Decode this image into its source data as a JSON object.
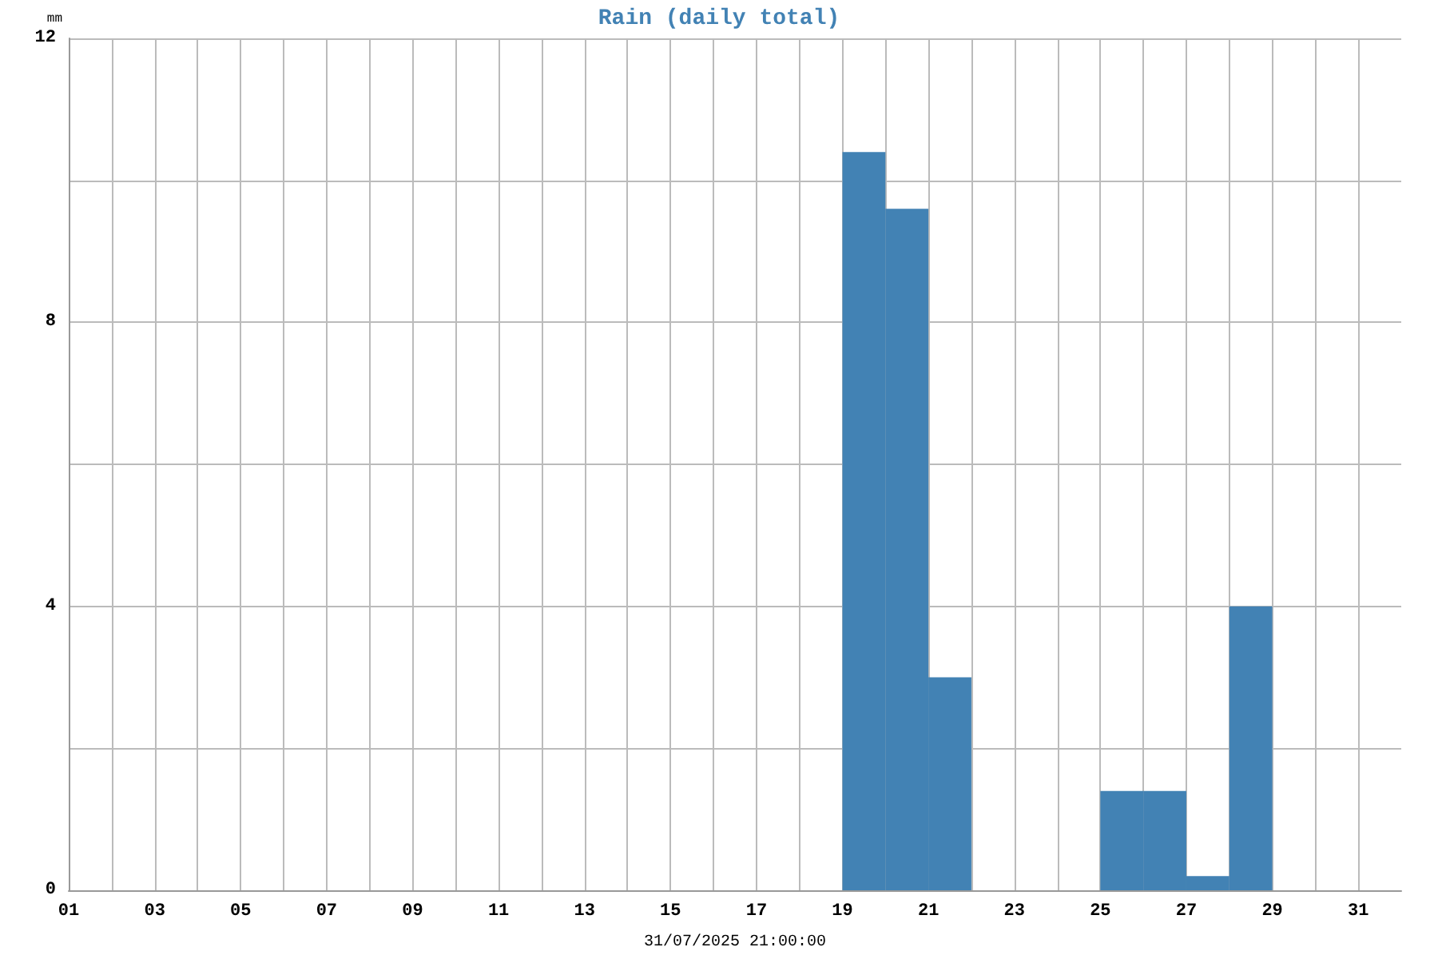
{
  "chart_data": {
    "type": "histogram",
    "title": "Rain (daily total)",
    "ylabel": "mm",
    "xlabel": "31/07/2025 21:00:00",
    "bins": [
      1,
      2,
      3,
      4,
      5,
      6,
      7,
      8,
      9,
      10,
      11,
      12,
      13,
      14,
      15,
      16,
      17,
      18,
      19,
      20,
      21,
      22,
      23,
      24,
      25,
      26,
      27,
      28,
      29,
      30,
      31,
      32
    ],
    "values": [
      0,
      0,
      0,
      0,
      0,
      0,
      0,
      0,
      0,
      0,
      0,
      0,
      0,
      0,
      0,
      0,
      0,
      0,
      10.4,
      9.6,
      3.0,
      0,
      0,
      0,
      1.4,
      1.4,
      0.2,
      4.0,
      0,
      0,
      0
    ],
    "color": "#4282b4",
    "xlim": [
      1,
      32
    ],
    "xticks": [
      {
        "value": 1,
        "label": "01"
      },
      {
        "value": 2,
        "label": null
      },
      {
        "value": 3,
        "label": "03"
      },
      {
        "value": 4,
        "label": null
      },
      {
        "value": 5,
        "label": "05"
      },
      {
        "value": 6,
        "label": null
      },
      {
        "value": 7,
        "label": "07"
      },
      {
        "value": 8,
        "label": null
      },
      {
        "value": 9,
        "label": "09"
      },
      {
        "value": 10,
        "label": null
      },
      {
        "value": 11,
        "label": "11"
      },
      {
        "value": 12,
        "label": null
      },
      {
        "value": 13,
        "label": "13"
      },
      {
        "value": 14,
        "label": null
      },
      {
        "value": 15,
        "label": "15"
      },
      {
        "value": 16,
        "label": null
      },
      {
        "value": 17,
        "label": "17"
      },
      {
        "value": 18,
        "label": null
      },
      {
        "value": 19,
        "label": "19"
      },
      {
        "value": 20,
        "label": null
      },
      {
        "value": 21,
        "label": "21"
      },
      {
        "value": 22,
        "label": null
      },
      {
        "value": 23,
        "label": "23"
      },
      {
        "value": 24,
        "label": null
      },
      {
        "value": 25,
        "label": "25"
      },
      {
        "value": 26,
        "label": null
      },
      {
        "value": 27,
        "label": "27"
      },
      {
        "value": 28,
        "label": null
      },
      {
        "value": 29,
        "label": "29"
      },
      {
        "value": 30,
        "label": null
      },
      {
        "value": 31,
        "label": "31"
      }
    ],
    "ylim": [
      0,
      12
    ],
    "yticks": [
      0,
      {
        "value": 2,
        "label": null
      },
      4,
      {
        "value": 6,
        "label": null
      },
      8,
      {
        "value": 10,
        "label": null
      },
      12
    ],
    "grid": true
  }
}
